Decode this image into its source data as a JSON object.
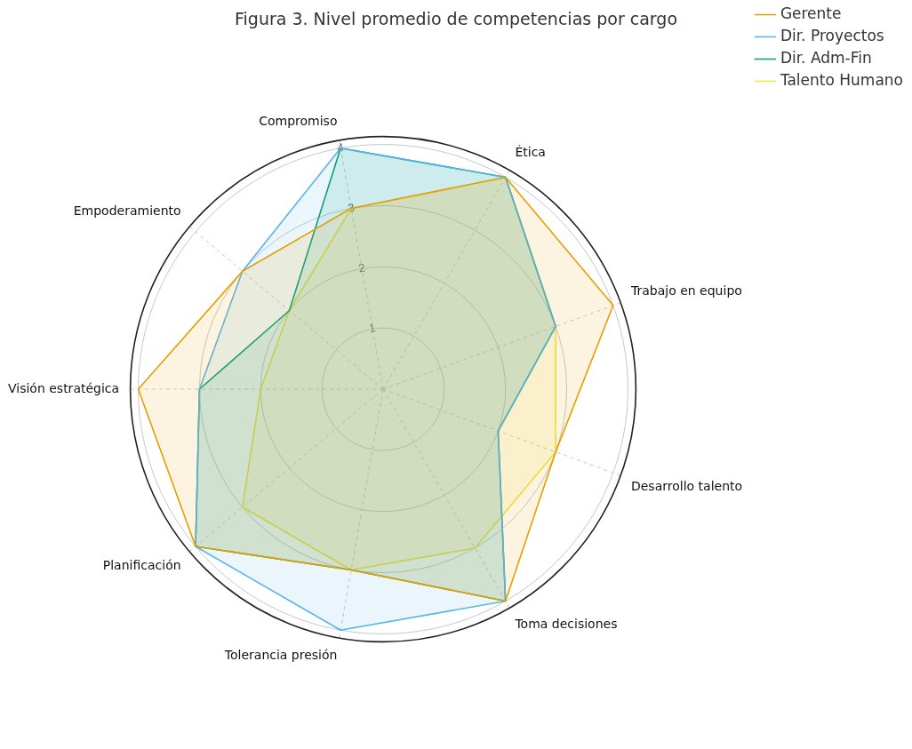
{
  "chart_data": {
    "type": "radar",
    "title": "Figura 3. Nivel promedio de competencias por cargo",
    "categories": [
      "Compromiso",
      "Ética",
      "Trabajo en equipo",
      "Desarrollo talento",
      "Toma decisiones",
      "Tolerancia presión",
      "Planificación",
      "Visión estratégica",
      "Empoderamiento"
    ],
    "series": [
      {
        "name": "Gerente",
        "color": "#e69f00",
        "values": [
          3,
          4,
          4,
          3,
          4,
          3,
          4,
          4,
          3
        ]
      },
      {
        "name": "Dir. Proyectos",
        "color": "#56b4e9",
        "values": [
          4,
          4,
          3,
          2,
          4,
          4,
          4,
          3,
          3
        ]
      },
      {
        "name": "Dir. Adm-Fin",
        "color": "#009e73",
        "values": [
          4,
          4,
          3,
          2,
          4,
          3,
          4,
          3,
          2
        ]
      },
      {
        "name": "Talento Humano",
        "color": "#f0e442",
        "values": [
          3,
          4,
          3,
          3,
          3,
          3,
          3,
          2,
          2
        ]
      }
    ],
    "ylim": [
      0,
      4.13
    ],
    "yticks": [
      1,
      2,
      3,
      4
    ],
    "grid": true,
    "legend": "top right"
  }
}
